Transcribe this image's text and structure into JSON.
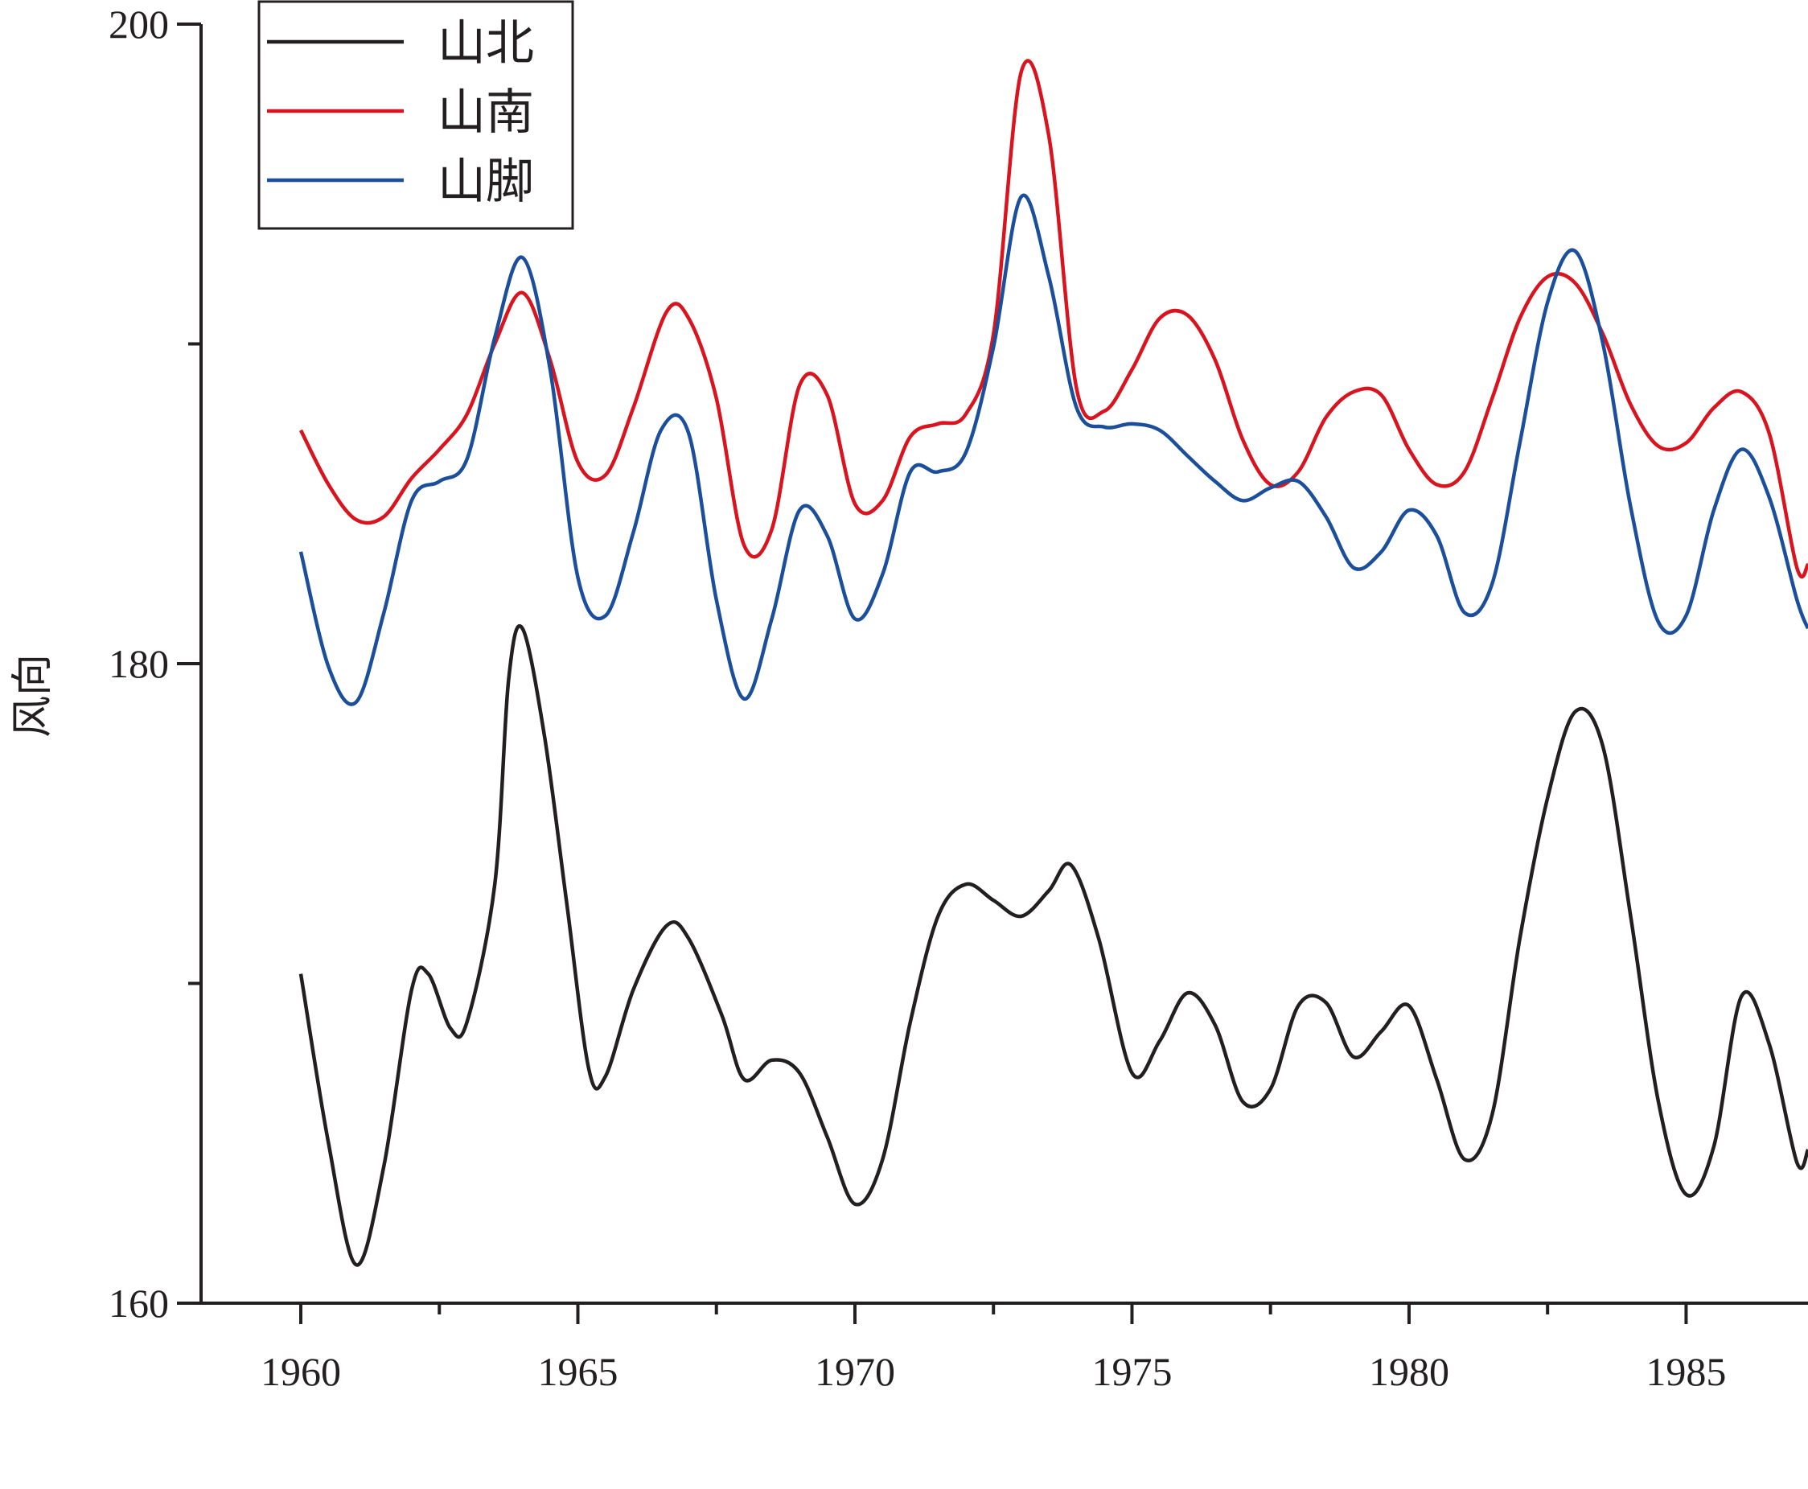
{
  "chart_data": {
    "type": "line",
    "title": "",
    "xlabel": "",
    "ylabel": "风向",
    "xlim": [
      1958.2,
      1987.2
    ],
    "ylim": [
      160,
      200
    ],
    "xticks": [
      1960,
      1965,
      1970,
      1975,
      1980,
      1985
    ],
    "xticks_minor": [
      1962.5,
      1967.5,
      1972.5,
      1977.5,
      1982.5
    ],
    "yticks": [
      160,
      180,
      200
    ],
    "yticks_minor": [
      170,
      190
    ],
    "grid": false,
    "legend_position": "top-left",
    "series": [
      {
        "name": "山北",
        "color": "#231f20",
        "x": [
          1960,
          1960.5,
          1961,
          1961.5,
          1962,
          1962.3,
          1962.7,
          1963,
          1963.5,
          1963.75,
          1964,
          1964.4,
          1964.8,
          1965.2,
          1965.5,
          1966,
          1966.6,
          1967,
          1967.6,
          1968,
          1968.5,
          1969,
          1969.5,
          1970,
          1970.5,
          1971,
          1971.5,
          1972,
          1972.5,
          1973,
          1973.5,
          1973.9,
          1974.4,
          1975,
          1975.5,
          1976,
          1976.5,
          1977,
          1977.5,
          1978,
          1978.5,
          1979,
          1979.5,
          1980,
          1980.5,
          1981,
          1981.5,
          1982,
          1982.5,
          1983,
          1983.5,
          1984,
          1984.5,
          1985,
          1985.5,
          1986,
          1986.5,
          1987,
          1987.2
        ],
        "values": [
          170.3,
          165.0,
          161.2,
          164.3,
          169.8,
          170.3,
          168.6,
          168.8,
          173.1,
          179.5,
          181.1,
          177.7,
          172.5,
          167.3,
          167.1,
          169.8,
          171.8,
          171.4,
          169.0,
          167.0,
          167.6,
          167.2,
          165.2,
          163.1,
          164.5,
          168.8,
          172.1,
          173.1,
          172.6,
          172.1,
          172.9,
          173.7,
          171.4,
          167.2,
          168.2,
          169.7,
          168.7,
          166.3,
          166.7,
          169.3,
          169.4,
          167.7,
          168.5,
          169.3,
          167.0,
          164.5,
          165.9,
          171.4,
          175.8,
          178.5,
          177.4,
          172.1,
          166.3,
          163.4,
          164.9,
          169.6,
          168.1,
          164.4,
          164.8
        ]
      },
      {
        "name": "山南",
        "color": "#d9141e",
        "x": [
          1960,
          1960.5,
          1961,
          1961.5,
          1962,
          1962.5,
          1963,
          1963.5,
          1964,
          1964.5,
          1965,
          1965.5,
          1966,
          1966.6,
          1967,
          1967.5,
          1968,
          1968.5,
          1969,
          1969.5,
          1970,
          1970.5,
          1971,
          1971.5,
          1972,
          1972.5,
          1973,
          1973.5,
          1974,
          1974.5,
          1975,
          1975.5,
          1976,
          1976.5,
          1977,
          1977.5,
          1978,
          1978.5,
          1979,
          1979.5,
          1980,
          1980.5,
          1981,
          1981.5,
          1982,
          1982.5,
          1983,
          1983.5,
          1984,
          1984.5,
          1985,
          1985.5,
          1986,
          1986.5,
          1987,
          1987.2
        ],
        "values": [
          187.3,
          185.6,
          184.5,
          184.6,
          185.8,
          186.7,
          187.8,
          190.0,
          191.6,
          189.5,
          186.3,
          185.9,
          188.0,
          191.0,
          190.8,
          188.3,
          183.7,
          184.2,
          188.7,
          188.4,
          185.0,
          185.1,
          187.1,
          187.5,
          187.8,
          190.3,
          198.5,
          196.5,
          188.6,
          187.9,
          189.2,
          190.8,
          190.9,
          189.5,
          187.0,
          185.6,
          186.0,
          187.7,
          188.5,
          188.4,
          186.7,
          185.6,
          186.0,
          188.3,
          190.8,
          192.1,
          191.9,
          190.3,
          188.1,
          186.8,
          186.9,
          188.0,
          188.5,
          187.2,
          183.0,
          183.1
        ]
      },
      {
        "name": "山脚",
        "color": "#1b4f9c",
        "x": [
          1960,
          1960.5,
          1961,
          1961.5,
          1962,
          1962.5,
          1963,
          1963.5,
          1964,
          1964.5,
          1965,
          1965.5,
          1966,
          1966.5,
          1967,
          1967.5,
          1968,
          1968.5,
          1969,
          1969.5,
          1970,
          1970.5,
          1971,
          1971.5,
          1972,
          1972.5,
          1973,
          1973.5,
          1974,
          1974.5,
          1975,
          1975.5,
          1976,
          1976.5,
          1977,
          1977.5,
          1978,
          1978.5,
          1979,
          1979.5,
          1980,
          1980.5,
          1981,
          1981.5,
          1982,
          1982.5,
          1983,
          1983.5,
          1984,
          1984.5,
          1985,
          1985.5,
          1986,
          1986.5,
          1987,
          1987.2
        ],
        "values": [
          183.5,
          179.9,
          178.8,
          181.6,
          185.1,
          185.7,
          186.4,
          190.2,
          192.7,
          189.2,
          182.7,
          181.5,
          184.1,
          187.3,
          187.2,
          182.0,
          178.9,
          181.4,
          184.8,
          184.0,
          181.4,
          182.8,
          186.0,
          186.0,
          186.6,
          189.9,
          194.6,
          192.1,
          188.0,
          187.4,
          187.5,
          187.3,
          186.5,
          185.7,
          185.1,
          185.5,
          185.7,
          184.6,
          183.0,
          183.5,
          184.8,
          184.0,
          181.6,
          182.5,
          186.9,
          191.3,
          192.9,
          190.0,
          184.9,
          181.3,
          181.5,
          184.8,
          186.7,
          185.2,
          182.0,
          181.1
        ]
      }
    ]
  }
}
